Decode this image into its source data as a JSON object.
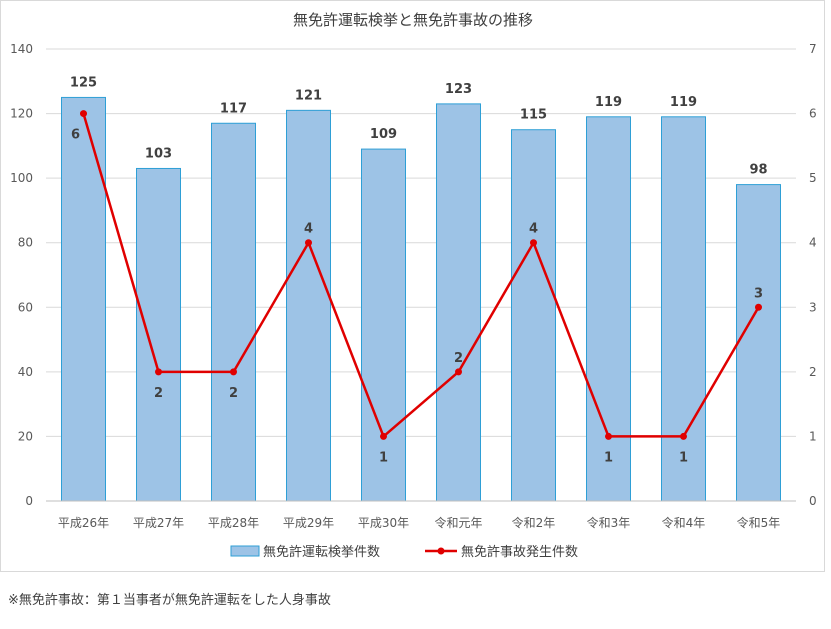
{
  "chart_data": {
    "type": "bar",
    "title": "無免許運転検挙と無免許事故の推移",
    "categories": [
      "平成26年",
      "平成27年",
      "平成28年",
      "平成29年",
      "平成30年",
      "令和元年",
      "令和2年",
      "令和3年",
      "令和4年",
      "令和5年"
    ],
    "series": [
      {
        "name": "無免許運転検挙件数",
        "type": "bar",
        "axis": "left",
        "color": "#9dc3e6",
        "border_color": "#2e9fd6",
        "values": [
          125,
          103,
          117,
          121,
          109,
          123,
          115,
          119,
          119,
          98
        ]
      },
      {
        "name": "無免許事故発生件数",
        "type": "line",
        "axis": "right",
        "color": "#e00000",
        "values": [
          6,
          2,
          2,
          4,
          1,
          2,
          4,
          1,
          1,
          3
        ]
      }
    ],
    "ylim": [
      0,
      140
    ],
    "y_ticks": [
      0,
      20,
      40,
      60,
      80,
      100,
      120,
      140
    ],
    "y2lim": [
      0,
      7
    ],
    "y2_ticks": [
      0,
      1,
      2,
      3,
      4,
      5,
      6,
      7
    ],
    "grid": true,
    "legend_position": "bottom",
    "data_labels": true
  },
  "footnote": "※無免許事故：第１当事者が無免許運転をした人身事故"
}
